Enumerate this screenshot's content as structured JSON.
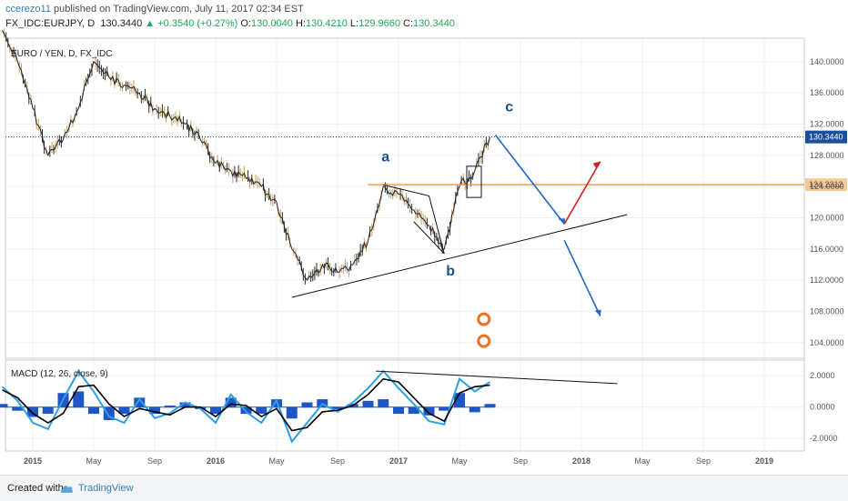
{
  "header": {
    "author": "ccerezo11",
    "published": " published on TradingView.com, July 11, 2017 02:34 EST",
    "symbol": "FX_IDC:EURJPY, D",
    "last": "130.3440",
    "change": "▲ +0.3540 (+0.27%)",
    "open_label": "O:",
    "open": "130.0040",
    "high_label": "H:",
    "high": "130.4210",
    "low_label": "L:",
    "low": "129.9660",
    "close_label": "C:",
    "close": "130.3440"
  },
  "footer": {
    "created_with": "Created with",
    "brand": "TradingView"
  },
  "colors": {
    "bullish": "#22a65a",
    "accent": "#2f7ec1",
    "resistance": "#f0a050",
    "wave_label": "#1f4e8c",
    "macd_line": "#2ba0e6",
    "signal_line": "#000000",
    "histogram": "#1f55c4",
    "arrow_up": "#d0201b",
    "arrow_down": "#1a6bc8"
  },
  "chart_data": [
    {
      "type": "line",
      "title": "EURO / YEN, D, FX_IDC",
      "ylim": [
        102,
        143
      ],
      "y_ticks": [
        104,
        108,
        112,
        116,
        120,
        124,
        128,
        132,
        136,
        140
      ],
      "y_tick_labels": [
        "104.0000",
        "108.0000",
        "112.0000",
        "116.0000",
        "120.0000",
        "124.0000",
        "128.0000",
        "132.0000",
        "136.0000",
        "140.0000"
      ],
      "x_ticks": [
        "2015",
        "May",
        "Sep",
        "2016",
        "May",
        "Sep",
        "2017",
        "May",
        "Sep",
        "2018",
        "May",
        "Sep",
        "2019"
      ],
      "current_price": {
        "value": 130.344,
        "label": "130.3440"
      },
      "resistance": {
        "value": 124.2312,
        "label": "124.2312"
      },
      "series": [
        {
          "x": [
            "2014-11",
            "2014-12",
            "2015-01",
            "2015-02",
            "2015-03",
            "2015-04",
            "2015-05",
            "2015-06",
            "2015-07",
            "2015-08",
            "2015-09",
            "2015-10",
            "2015-11",
            "2015-12",
            "2016-01",
            "2016-02",
            "2016-03",
            "2016-04",
            "2016-05",
            "2016-06",
            "2016-07",
            "2016-08",
            "2016-09",
            "2016-10",
            "2016-11",
            "2016-12",
            "2017-01",
            "2017-02",
            "2017-03",
            "2017-04",
            "2017-05",
            "2017-06",
            "2017-07"
          ],
          "values": [
            144,
            140,
            134,
            128,
            130,
            134,
            140,
            138,
            137,
            136,
            134,
            133,
            132,
            130,
            127,
            126,
            125,
            124,
            122,
            116,
            112,
            114,
            113,
            114,
            117,
            124,
            123,
            121,
            119,
            116,
            124,
            126,
            130.3
          ]
        }
      ],
      "wave_labels": [
        "a",
        "b",
        "c"
      ]
    },
    {
      "type": "line",
      "title": "MACD (12, 26, close, 9)",
      "ylim": [
        -2.8,
        3.0
      ],
      "y_ticks": [
        -2,
        0,
        2
      ],
      "y_tick_labels": [
        "-2.0000",
        "0.0000",
        "2.0000"
      ],
      "series": [
        {
          "name": "MACD",
          "values": [
            1.3,
            0.4,
            -1.0,
            -1.4,
            0.5,
            2.3,
            1.0,
            -0.6,
            -1.0,
            0.5,
            -0.7,
            -0.4,
            0.3,
            -0.1,
            -1.0,
            0.8,
            -0.3,
            -1.0,
            0.4,
            -2.2,
            -1.0,
            0.2,
            -0.3,
            0.3,
            1.2,
            2.3,
            1.2,
            0.2,
            -0.9,
            -1.1,
            1.8,
            1.0,
            1.6
          ]
        },
        {
          "name": "Signal",
          "values": [
            1.1,
            0.6,
            -0.4,
            -1.0,
            -0.4,
            1.3,
            1.4,
            0.2,
            -0.6,
            -0.1,
            -0.3,
            -0.5,
            0.0,
            0.0,
            -0.6,
            0.2,
            0.1,
            -0.6,
            -0.1,
            -1.5,
            -1.3,
            -0.3,
            -0.2,
            0.1,
            0.8,
            1.8,
            1.6,
            0.6,
            -0.4,
            -0.9,
            0.9,
            1.3,
            1.4
          ]
        }
      ]
    }
  ]
}
